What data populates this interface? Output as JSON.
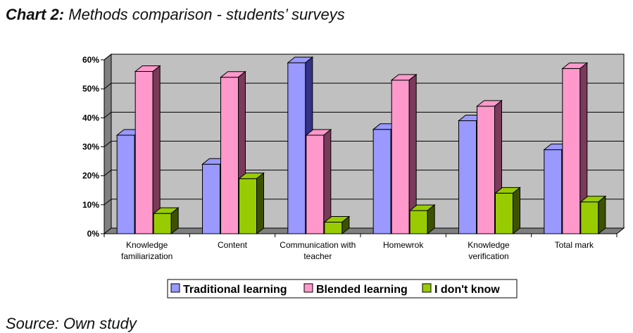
{
  "caption": {
    "label": "Chart 2:",
    "text": " Methods comparison - students’ surveys"
  },
  "source": "Source: Own study",
  "chart_data": {
    "type": "bar",
    "title": "",
    "xlabel": "",
    "ylabel": "",
    "ylim": [
      0,
      60
    ],
    "yticks": [
      "0%",
      "10%",
      "20%",
      "30%",
      "40%",
      "50%",
      "60%"
    ],
    "categories": [
      [
        "Knowledge",
        "familiarization"
      ],
      [
        "Content"
      ],
      [
        "Communication with",
        "teacher"
      ],
      [
        "Homewrok"
      ],
      [
        "Knowledge",
        "verification"
      ],
      [
        "Total mark"
      ]
    ],
    "series": [
      {
        "name": "Traditional learning",
        "values": [
          34,
          24,
          59,
          36,
          39,
          29
        ],
        "color": "#9999ff",
        "side": "#33338a"
      },
      {
        "name": "Blended learning",
        "values": [
          56,
          54,
          34,
          53,
          44,
          57
        ],
        "color": "#ff99cc",
        "side": "#7a3a5a"
      },
      {
        "name": "I don't know",
        "values": [
          7,
          19,
          4,
          8,
          14,
          11
        ],
        "color": "#99cc00",
        "side": "#3d5200"
      }
    ],
    "grid": true,
    "legend_position": "bottom"
  }
}
